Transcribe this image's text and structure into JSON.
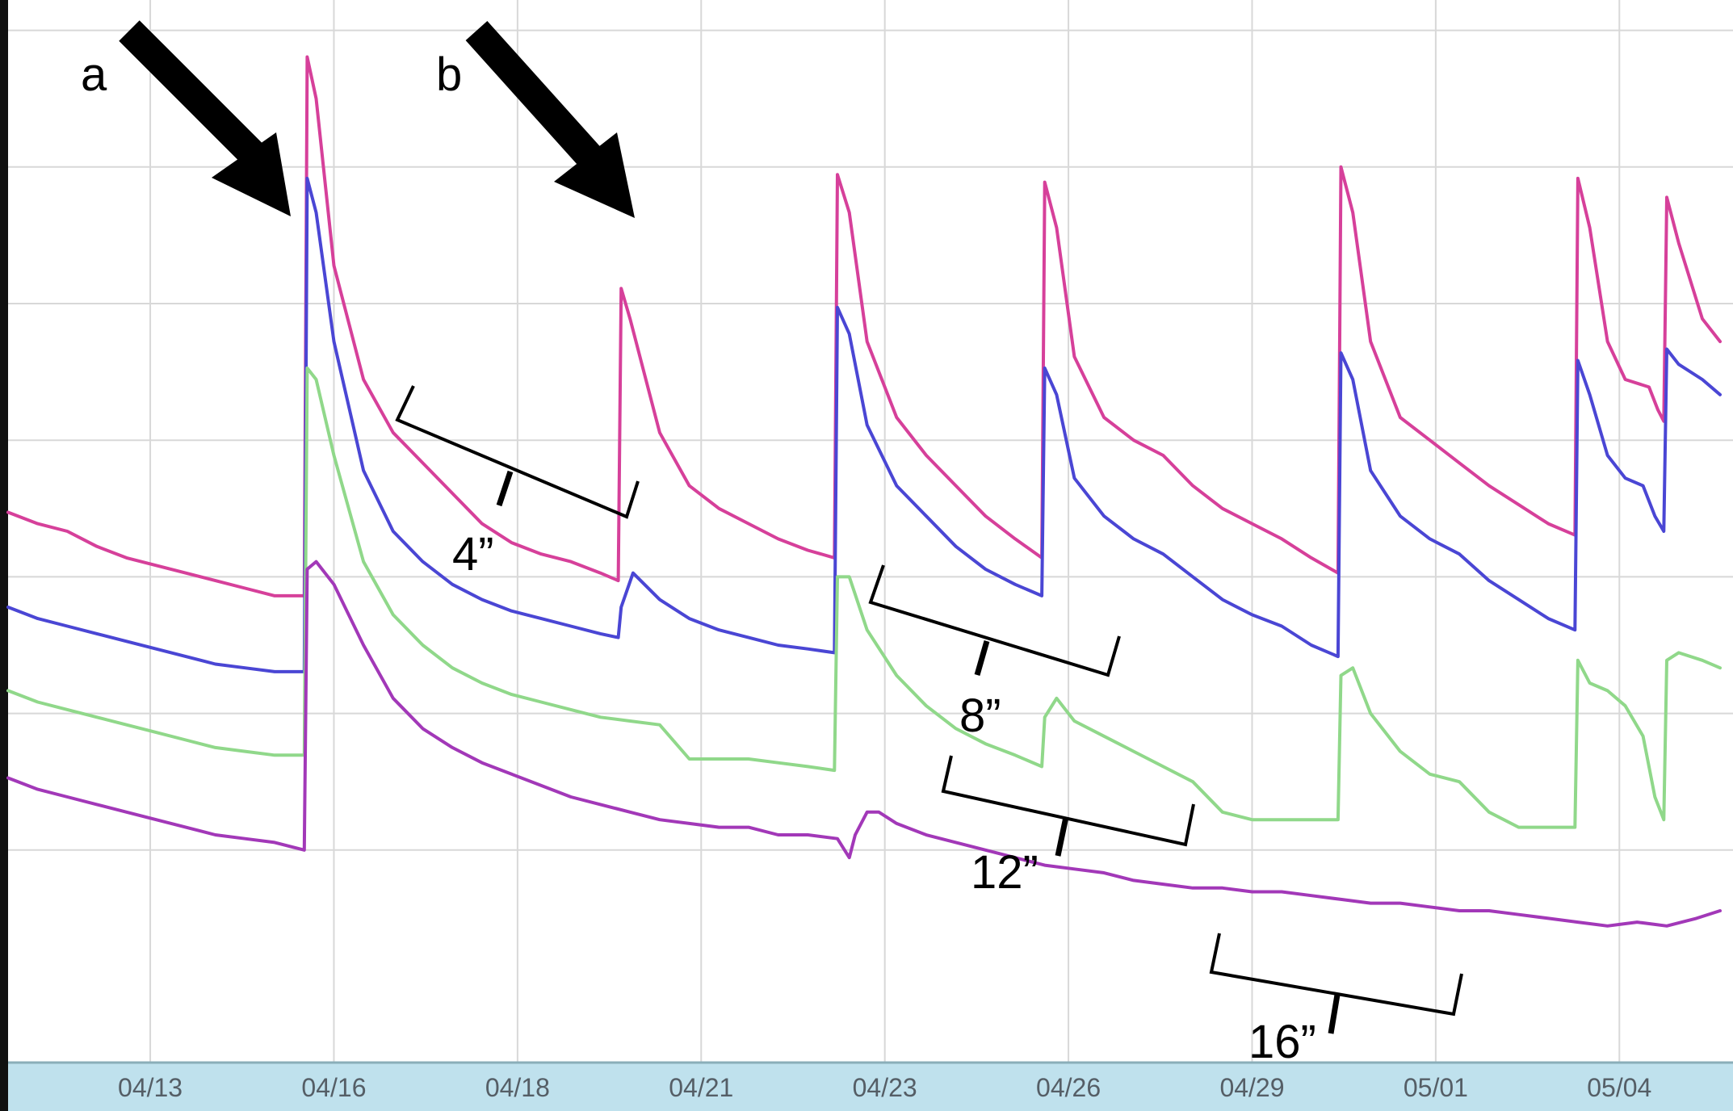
{
  "chart_data": {
    "type": "line",
    "x_tick_labels": [
      "04/13",
      "04/16",
      "04/18",
      "04/21",
      "04/23",
      "04/26",
      "04/29",
      "05/01",
      "05/04"
    ],
    "grid": true,
    "y_axis_labels_shown": false,
    "annotations": {
      "arrows": [
        {
          "label": "a",
          "at": "04/15"
        },
        {
          "label": "b",
          "at": "04/20"
        }
      ],
      "brackets": [
        {
          "label": "4”",
          "from": "04/17",
          "to": "04/20"
        },
        {
          "label": "8”",
          "from": "04/22",
          "to": "04/26"
        },
        {
          "label": "12”",
          "from": "04/23",
          "to": "04/28"
        },
        {
          "label": "16”",
          "from": "04/28",
          "to": "05/01"
        }
      ]
    },
    "series": [
      {
        "color": "#d6409a",
        "points": [
          [
            0,
            0.725
          ],
          [
            0.5,
            0.71
          ],
          [
            1,
            0.7
          ],
          [
            1.5,
            0.68
          ],
          [
            2,
            0.665
          ],
          [
            2.5,
            0.655
          ],
          [
            3,
            0.645
          ],
          [
            3.5,
            0.635
          ],
          [
            4,
            0.625
          ],
          [
            4.5,
            0.615
          ],
          [
            5,
            0.615
          ],
          [
            5.05,
            1.325
          ],
          [
            5.2,
            1.27
          ],
          [
            5.5,
            1.05
          ],
          [
            6,
            0.9
          ],
          [
            6.5,
            0.83
          ],
          [
            7,
            0.79
          ],
          [
            7.5,
            0.75
          ],
          [
            8,
            0.71
          ],
          [
            8.5,
            0.685
          ],
          [
            9,
            0.67
          ],
          [
            9.5,
            0.66
          ],
          [
            10,
            0.645
          ],
          [
            10.3,
            0.635
          ],
          [
            10.35,
            1.02
          ],
          [
            10.5,
            0.98
          ],
          [
            11,
            0.83
          ],
          [
            11.5,
            0.76
          ],
          [
            12,
            0.73
          ],
          [
            12.5,
            0.71
          ],
          [
            13,
            0.69
          ],
          [
            13.5,
            0.675
          ],
          [
            13.95,
            0.665
          ],
          [
            14,
            1.17
          ],
          [
            14.2,
            1.12
          ],
          [
            14.5,
            0.95
          ],
          [
            15,
            0.85
          ],
          [
            15.5,
            0.8
          ],
          [
            16,
            0.76
          ],
          [
            16.5,
            0.72
          ],
          [
            17,
            0.69
          ],
          [
            17.45,
            0.665
          ],
          [
            17.5,
            1.16
          ],
          [
            17.7,
            1.1
          ],
          [
            18,
            0.93
          ],
          [
            18.5,
            0.85
          ],
          [
            19,
            0.82
          ],
          [
            19.5,
            0.8
          ],
          [
            20,
            0.76
          ],
          [
            20.5,
            0.73
          ],
          [
            21,
            0.71
          ],
          [
            21.5,
            0.69
          ],
          [
            22,
            0.665
          ],
          [
            22.45,
            0.645
          ],
          [
            22.5,
            1.18
          ],
          [
            22.7,
            1.12
          ],
          [
            23,
            0.95
          ],
          [
            23.5,
            0.85
          ],
          [
            24,
            0.82
          ],
          [
            24.5,
            0.79
          ],
          [
            25,
            0.76
          ],
          [
            25.5,
            0.735
          ],
          [
            26,
            0.71
          ],
          [
            26.45,
            0.695
          ],
          [
            26.5,
            1.165
          ],
          [
            26.7,
            1.1
          ],
          [
            27,
            0.95
          ],
          [
            27.3,
            0.9
          ],
          [
            27.7,
            0.89
          ],
          [
            27.85,
            0.86
          ],
          [
            27.95,
            0.845
          ],
          [
            28,
            1.14
          ],
          [
            28.2,
            1.08
          ],
          [
            28.6,
            0.98
          ],
          [
            28.9,
            0.95
          ]
        ]
      },
      {
        "color": "#4a46d4",
        "points": [
          [
            0,
            0.6
          ],
          [
            0.5,
            0.585
          ],
          [
            1,
            0.575
          ],
          [
            1.5,
            0.565
          ],
          [
            2,
            0.555
          ],
          [
            2.5,
            0.545
          ],
          [
            3,
            0.535
          ],
          [
            3.5,
            0.525
          ],
          [
            4,
            0.52
          ],
          [
            4.5,
            0.515
          ],
          [
            5,
            0.515
          ],
          [
            5.05,
            1.165
          ],
          [
            5.2,
            1.12
          ],
          [
            5.5,
            0.95
          ],
          [
            6,
            0.78
          ],
          [
            6.5,
            0.7
          ],
          [
            7,
            0.66
          ],
          [
            7.5,
            0.63
          ],
          [
            8,
            0.61
          ],
          [
            8.5,
            0.595
          ],
          [
            9,
            0.585
          ],
          [
            9.5,
            0.575
          ],
          [
            10,
            0.565
          ],
          [
            10.3,
            0.56
          ],
          [
            10.35,
            0.6
          ],
          [
            10.55,
            0.645
          ],
          [
            11,
            0.61
          ],
          [
            11.5,
            0.585
          ],
          [
            12,
            0.57
          ],
          [
            12.5,
            0.56
          ],
          [
            13,
            0.55
          ],
          [
            13.5,
            0.545
          ],
          [
            13.95,
            0.54
          ],
          [
            14,
            0.995
          ],
          [
            14.2,
            0.96
          ],
          [
            14.5,
            0.84
          ],
          [
            15,
            0.76
          ],
          [
            15.5,
            0.72
          ],
          [
            16,
            0.68
          ],
          [
            16.5,
            0.65
          ],
          [
            17,
            0.63
          ],
          [
            17.45,
            0.615
          ],
          [
            17.5,
            0.915
          ],
          [
            17.7,
            0.88
          ],
          [
            18,
            0.77
          ],
          [
            18.5,
            0.72
          ],
          [
            19,
            0.69
          ],
          [
            19.5,
            0.67
          ],
          [
            20,
            0.64
          ],
          [
            20.5,
            0.61
          ],
          [
            21,
            0.59
          ],
          [
            21.5,
            0.575
          ],
          [
            22,
            0.55
          ],
          [
            22.45,
            0.535
          ],
          [
            22.5,
            0.935
          ],
          [
            22.7,
            0.9
          ],
          [
            23,
            0.78
          ],
          [
            23.5,
            0.72
          ],
          [
            24,
            0.69
          ],
          [
            24.5,
            0.67
          ],
          [
            25,
            0.635
          ],
          [
            25.5,
            0.61
          ],
          [
            26,
            0.585
          ],
          [
            26.45,
            0.57
          ],
          [
            26.5,
            0.925
          ],
          [
            26.7,
            0.88
          ],
          [
            27,
            0.8
          ],
          [
            27.3,
            0.77
          ],
          [
            27.6,
            0.76
          ],
          [
            27.8,
            0.72
          ],
          [
            27.95,
            0.7
          ],
          [
            28,
            0.94
          ],
          [
            28.2,
            0.92
          ],
          [
            28.6,
            0.9
          ],
          [
            28.9,
            0.88
          ]
        ]
      },
      {
        "color": "#90d88a",
        "points": [
          [
            0,
            0.49
          ],
          [
            0.5,
            0.475
          ],
          [
            1,
            0.465
          ],
          [
            1.5,
            0.455
          ],
          [
            2,
            0.445
          ],
          [
            2.5,
            0.435
          ],
          [
            3,
            0.425
          ],
          [
            3.5,
            0.415
          ],
          [
            4,
            0.41
          ],
          [
            4.5,
            0.405
          ],
          [
            5,
            0.405
          ],
          [
            5.05,
            0.915
          ],
          [
            5.2,
            0.9
          ],
          [
            5.5,
            0.8
          ],
          [
            6,
            0.66
          ],
          [
            6.5,
            0.59
          ],
          [
            7,
            0.55
          ],
          [
            7.5,
            0.52
          ],
          [
            8,
            0.5
          ],
          [
            8.5,
            0.485
          ],
          [
            9,
            0.475
          ],
          [
            9.5,
            0.465
          ],
          [
            10,
            0.455
          ],
          [
            10.5,
            0.45
          ],
          [
            11,
            0.445
          ],
          [
            11.5,
            0.4
          ],
          [
            12,
            0.4
          ],
          [
            12.5,
            0.4
          ],
          [
            13,
            0.395
          ],
          [
            13.5,
            0.39
          ],
          [
            13.95,
            0.385
          ],
          [
            14,
            0.64
          ],
          [
            14.2,
            0.64
          ],
          [
            14.5,
            0.57
          ],
          [
            15,
            0.51
          ],
          [
            15.5,
            0.47
          ],
          [
            16,
            0.44
          ],
          [
            16.5,
            0.42
          ],
          [
            17,
            0.405
          ],
          [
            17.45,
            0.39
          ],
          [
            17.5,
            0.455
          ],
          [
            17.7,
            0.48
          ],
          [
            18,
            0.45
          ],
          [
            18.5,
            0.43
          ],
          [
            19,
            0.41
          ],
          [
            19.5,
            0.39
          ],
          [
            20,
            0.37
          ],
          [
            20.5,
            0.33
          ],
          [
            21,
            0.32
          ],
          [
            21.5,
            0.32
          ],
          [
            22,
            0.32
          ],
          [
            22.45,
            0.32
          ],
          [
            22.5,
            0.51
          ],
          [
            22.7,
            0.52
          ],
          [
            23,
            0.46
          ],
          [
            23.5,
            0.41
          ],
          [
            24,
            0.38
          ],
          [
            24.5,
            0.37
          ],
          [
            25,
            0.33
          ],
          [
            25.5,
            0.31
          ],
          [
            26,
            0.31
          ],
          [
            26.45,
            0.31
          ],
          [
            26.5,
            0.53
          ],
          [
            26.7,
            0.5
          ],
          [
            27,
            0.49
          ],
          [
            27.3,
            0.47
          ],
          [
            27.6,
            0.43
          ],
          [
            27.8,
            0.35
          ],
          [
            27.95,
            0.32
          ],
          [
            28,
            0.53
          ],
          [
            28.2,
            0.54
          ],
          [
            28.6,
            0.53
          ],
          [
            28.9,
            0.52
          ]
        ]
      },
      {
        "color": "#a238b8",
        "points": [
          [
            0,
            0.375
          ],
          [
            0.5,
            0.36
          ],
          [
            1,
            0.35
          ],
          [
            1.5,
            0.34
          ],
          [
            2,
            0.33
          ],
          [
            2.5,
            0.32
          ],
          [
            3,
            0.31
          ],
          [
            3.5,
            0.3
          ],
          [
            4,
            0.295
          ],
          [
            4.5,
            0.29
          ],
          [
            5,
            0.28
          ],
          [
            5.05,
            0.65
          ],
          [
            5.2,
            0.66
          ],
          [
            5.5,
            0.63
          ],
          [
            6,
            0.55
          ],
          [
            6.5,
            0.48
          ],
          [
            7,
            0.44
          ],
          [
            7.5,
            0.415
          ],
          [
            8,
            0.395
          ],
          [
            8.5,
            0.38
          ],
          [
            9,
            0.365
          ],
          [
            9.5,
            0.35
          ],
          [
            10,
            0.34
          ],
          [
            10.5,
            0.33
          ],
          [
            11,
            0.32
          ],
          [
            11.5,
            0.315
          ],
          [
            12,
            0.31
          ],
          [
            12.5,
            0.31
          ],
          [
            13,
            0.3
          ],
          [
            13.5,
            0.3
          ],
          [
            14,
            0.295
          ],
          [
            14.2,
            0.27
          ],
          [
            14.3,
            0.3
          ],
          [
            14.5,
            0.33
          ],
          [
            14.7,
            0.33
          ],
          [
            15,
            0.315
          ],
          [
            15.5,
            0.3
          ],
          [
            16,
            0.29
          ],
          [
            16.5,
            0.28
          ],
          [
            17,
            0.27
          ],
          [
            17.5,
            0.26
          ],
          [
            18,
            0.255
          ],
          [
            18.5,
            0.25
          ],
          [
            19,
            0.24
          ],
          [
            19.5,
            0.235
          ],
          [
            20,
            0.23
          ],
          [
            20.5,
            0.23
          ],
          [
            21,
            0.225
          ],
          [
            21.5,
            0.225
          ],
          [
            22,
            0.22
          ],
          [
            22.5,
            0.215
          ],
          [
            23,
            0.21
          ],
          [
            23.5,
            0.21
          ],
          [
            24,
            0.205
          ],
          [
            24.5,
            0.2
          ],
          [
            25,
            0.2
          ],
          [
            25.5,
            0.195
          ],
          [
            26,
            0.19
          ],
          [
            26.5,
            0.185
          ],
          [
            27,
            0.18
          ],
          [
            27.5,
            0.185
          ],
          [
            28,
            0.18
          ],
          [
            28.5,
            0.19
          ],
          [
            28.9,
            0.2
          ]
        ]
      }
    ]
  }
}
